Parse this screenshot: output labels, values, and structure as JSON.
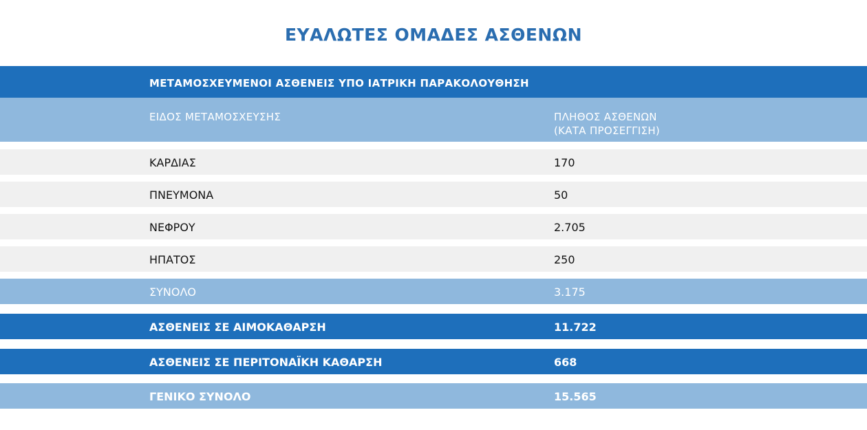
{
  "title": "ΕΥΑΛΩΤΕΣ ΟΜΑΔΕΣ ΑΣΘΕΝΩΝ",
  "section_header": "ΜΕΤΑΜΟΣΧΕΥΜΕΝΟΙ ΑΣΘΕΝΕΙΣ ΥΠΟ ΙΑΤΡΙΚΗ ΠΑΡΑΚΟΛΟΥΘΗΣΗ",
  "columns": {
    "type": "ΕΙΔΟΣ ΜΕΤΑΜΟΣΧΕΥΣΗΣ",
    "count_line1": "ΠΛΗΘΟΣ ΑΣΘΕΝΩΝ",
    "count_line2": "(ΚΑΤΑ ΠΡΟΣΕΓΓΙΣΗ)"
  },
  "rows": [
    {
      "label": "ΚΑΡΔΙΑΣ",
      "value": "170"
    },
    {
      "label": "ΠΝΕΥΜΟΝΑ",
      "value": "50"
    },
    {
      "label": "ΝΕΦΡΟΥ",
      "value": "2.705"
    },
    {
      "label": "ΗΠΑΤΟΣ",
      "value": "250"
    }
  ],
  "total": {
    "label": "ΣΥΝΟΛΟ",
    "value": "3.175"
  },
  "dialysis": {
    "label": "ΑΣΘΕΝΕΙΣ ΣΕ ΑΙΜΟΚΑΘΑΡΣΗ",
    "value": "11.722"
  },
  "peritoneal": {
    "label": "ΑΣΘΕΝΕΙΣ ΣΕ ΠΕΡΙΤΟΝΑΪΚΗ ΚΑΘΑΡΣΗ",
    "value": "668"
  },
  "grand_total": {
    "label": "ΓΕΝΙΚΟ ΣΥΝΟΛΟ",
    "value": "15.565"
  },
  "colors": {
    "title": "#2a6db0",
    "dark_band": "#1e6fbb",
    "light_band": "#8fb8dd",
    "grey_row": "#f0f0f0"
  }
}
